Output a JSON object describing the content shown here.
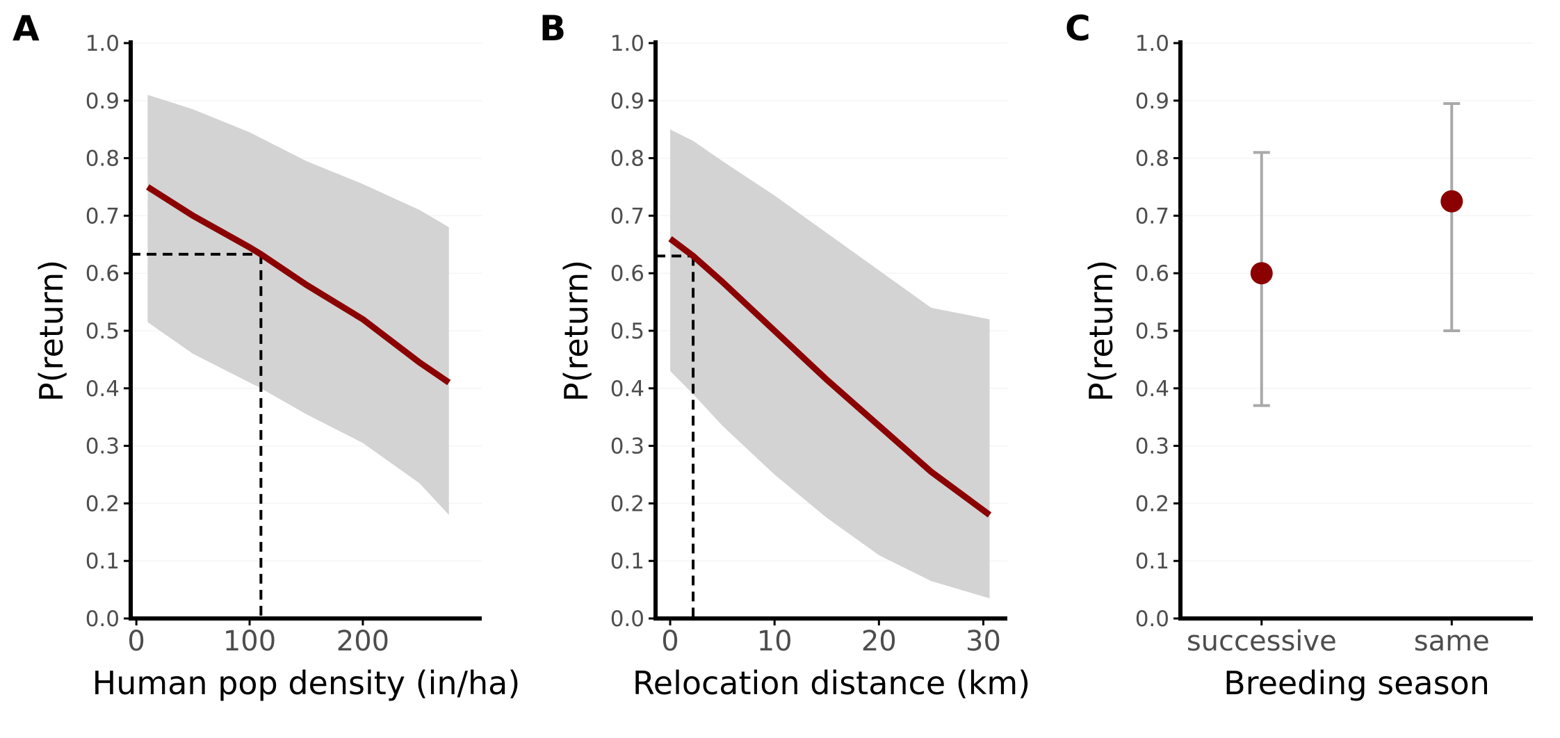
{
  "chart_data": [
    {
      "panel": "A",
      "type": "line",
      "xlabel": "Human pop density (in/ha)",
      "ylabel": "P(return)",
      "xlim": [
        -5,
        305
      ],
      "ylim": [
        0,
        1
      ],
      "xticks": [
        0,
        100,
        200
      ],
      "yticks": [
        0.0,
        0.1,
        0.2,
        0.3,
        0.4,
        0.5,
        0.6,
        0.7,
        0.8,
        0.9,
        1.0
      ],
      "series": [
        {
          "x": [
            10,
            50,
            100,
            110,
            150,
            200,
            250,
            276
          ],
          "y": [
            0.75,
            0.7,
            0.645,
            0.633,
            0.58,
            0.52,
            0.445,
            0.41
          ],
          "lower": [
            0.515,
            0.46,
            0.41,
            0.4,
            0.355,
            0.305,
            0.235,
            0.18
          ],
          "upper": [
            0.91,
            0.885,
            0.845,
            0.835,
            0.795,
            0.755,
            0.71,
            0.68
          ]
        }
      ],
      "reference": {
        "x": 110,
        "y": 0.633
      },
      "grid": false,
      "colors": {
        "line": "#8b0000",
        "band": "#d3d3d3",
        "reference": "#000000"
      }
    },
    {
      "panel": "B",
      "type": "line",
      "xlabel": "Relocation distance (km)",
      "ylabel": "P(return)",
      "xlim": [
        -1.4,
        32.3
      ],
      "ylim": [
        0,
        1
      ],
      "xticks": [
        0,
        10,
        20,
        30
      ],
      "yticks": [
        0.0,
        0.1,
        0.2,
        0.3,
        0.4,
        0.5,
        0.6,
        0.7,
        0.8,
        0.9,
        1.0
      ],
      "series": [
        {
          "x": [
            0,
            2.2,
            5,
            10,
            15,
            20,
            25,
            30.6
          ],
          "y": [
            0.66,
            0.63,
            0.585,
            0.5,
            0.415,
            0.335,
            0.255,
            0.18
          ],
          "lower": [
            0.43,
            0.39,
            0.335,
            0.25,
            0.175,
            0.11,
            0.065,
            0.035
          ],
          "upper": [
            0.85,
            0.83,
            0.795,
            0.735,
            0.67,
            0.605,
            0.54,
            0.52
          ]
        }
      ],
      "reference": {
        "x": 2.2,
        "y": 0.63
      },
      "grid": false,
      "colors": {
        "line": "#8b0000",
        "band": "#d3d3d3",
        "reference": "#000000"
      }
    },
    {
      "panel": "C",
      "type": "scatter",
      "xlabel": "Breeding season",
      "ylabel": "P(return)",
      "categories": [
        "successive",
        "same"
      ],
      "ylim": [
        0,
        1
      ],
      "yticks": [
        0.0,
        0.1,
        0.2,
        0.3,
        0.4,
        0.5,
        0.6,
        0.7,
        0.8,
        0.9,
        1.0
      ],
      "values": [
        0.6,
        0.725
      ],
      "lower": [
        0.37,
        0.5
      ],
      "upper": [
        0.81,
        0.895
      ],
      "grid": false,
      "colors": {
        "point": "#8b0000",
        "errorbar": "#a9a9a9"
      }
    }
  ]
}
